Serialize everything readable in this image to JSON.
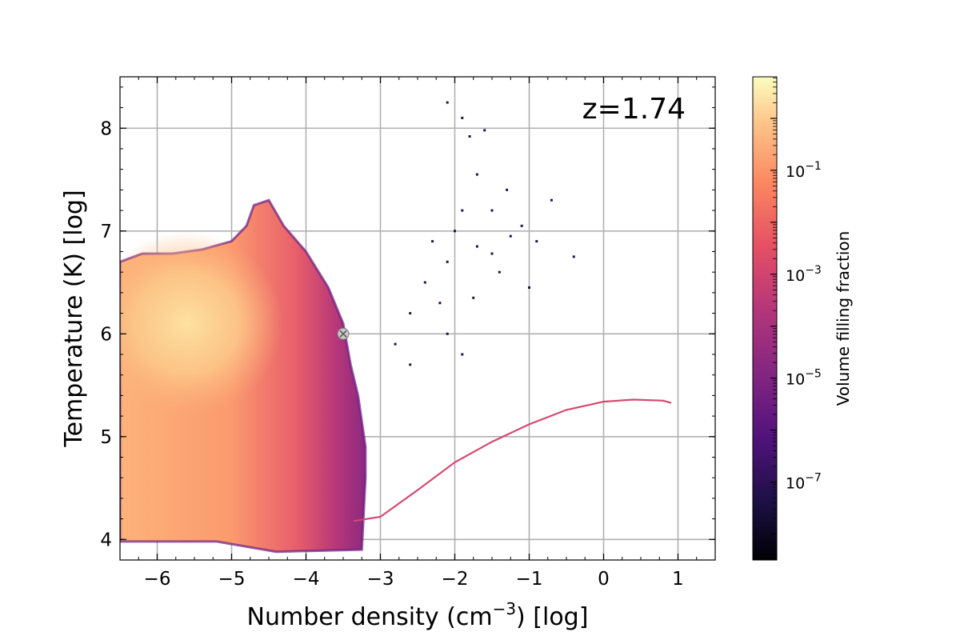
{
  "chart_data": {
    "type": "heatmap",
    "annotation": "z=1.74",
    "xlabel": {
      "main": "Number density (cm",
      "sup": "−3",
      "tail": ") [log]"
    },
    "ylabel": "Temperature (K) [log]",
    "xlim": [
      -6.5,
      1.5
    ],
    "ylim": [
      3.8,
      8.5
    ],
    "x_ticks": [
      -6,
      -5,
      -4,
      -3,
      -2,
      -1,
      0,
      1
    ],
    "x_tick_labels": [
      "−6",
      "−5",
      "−4",
      "−3",
      "−2",
      "−1",
      "0",
      "1"
    ],
    "y_ticks": [
      4,
      5,
      6,
      7,
      8
    ],
    "y_tick_labels": [
      "4",
      "5",
      "6",
      "7",
      "8"
    ],
    "grid": true,
    "colormap": "magma",
    "colorbar": {
      "label": "Volume filling fraction",
      "scale": "log",
      "range_log10": [
        -8.5,
        0.8
      ],
      "ticks_log10": [
        -1,
        -3,
        -5,
        -7
      ],
      "tick_label_base": "10",
      "tick_label_exponents": [
        "−1",
        "−3",
        "−5",
        "−7"
      ]
    },
    "marker": {
      "x": -3.5,
      "y": 6.0,
      "symbol": "x"
    },
    "regions": [
      {
        "name": "main-distribution",
        "outline": [
          [
            -6.5,
            6.7
          ],
          [
            -6.2,
            6.78
          ],
          [
            -5.8,
            6.78
          ],
          [
            -5.4,
            6.82
          ],
          [
            -5.0,
            6.9
          ],
          [
            -4.8,
            7.05
          ],
          [
            -4.7,
            7.25
          ],
          [
            -4.5,
            7.3
          ],
          [
            -4.3,
            7.05
          ],
          [
            -4.0,
            6.8
          ],
          [
            -3.7,
            6.45
          ],
          [
            -3.5,
            6.1
          ],
          [
            -3.4,
            5.7
          ],
          [
            -3.3,
            5.4
          ],
          [
            -3.2,
            4.9
          ],
          [
            -3.2,
            4.6
          ],
          [
            -3.25,
            3.9
          ],
          [
            -4.4,
            3.88
          ],
          [
            -5.2,
            3.98
          ],
          [
            -6.5,
            3.98
          ]
        ],
        "core": {
          "x": -5.6,
          "y": 6.1
        },
        "log10_fraction_core": 0.3
      },
      {
        "name": "cooling-track",
        "points": [
          [
            -3.35,
            4.18
          ],
          [
            -3.0,
            4.22
          ],
          [
            -2.5,
            4.48
          ],
          [
            -2.0,
            4.75
          ],
          [
            -1.5,
            4.95
          ],
          [
            -1.0,
            5.12
          ],
          [
            -0.5,
            5.26
          ],
          [
            0.0,
            5.34
          ],
          [
            0.4,
            5.36
          ],
          [
            0.8,
            5.35
          ],
          [
            0.9,
            5.33
          ]
        ],
        "log10_fraction": -5
      }
    ],
    "scatter_points": [
      [
        -2.1,
        8.25
      ],
      [
        -1.9,
        8.1
      ],
      [
        -1.8,
        7.92
      ],
      [
        -1.6,
        7.98
      ],
      [
        -1.7,
        7.55
      ],
      [
        -1.9,
        7.2
      ],
      [
        -1.5,
        7.2
      ],
      [
        -1.3,
        7.4
      ],
      [
        -1.1,
        7.05
      ],
      [
        -0.7,
        7.3
      ],
      [
        -0.9,
        6.9
      ],
      [
        -1.7,
        6.85
      ],
      [
        -1.5,
        6.78
      ],
      [
        -2.1,
        6.7
      ],
      [
        -2.3,
        6.9
      ],
      [
        -2.4,
        6.5
      ],
      [
        -2.2,
        6.3
      ],
      [
        -2.1,
        6.0
      ],
      [
        -1.4,
        6.6
      ],
      [
        -0.4,
        6.75
      ],
      [
        -1.9,
        5.8
      ],
      [
        -2.6,
        6.2
      ],
      [
        -2.8,
        5.9
      ],
      [
        -2.6,
        5.7
      ],
      [
        -1.0,
        6.45
      ],
      [
        -1.75,
        6.35
      ],
      [
        -2.0,
        7.0
      ],
      [
        -1.25,
        6.95
      ]
    ]
  }
}
